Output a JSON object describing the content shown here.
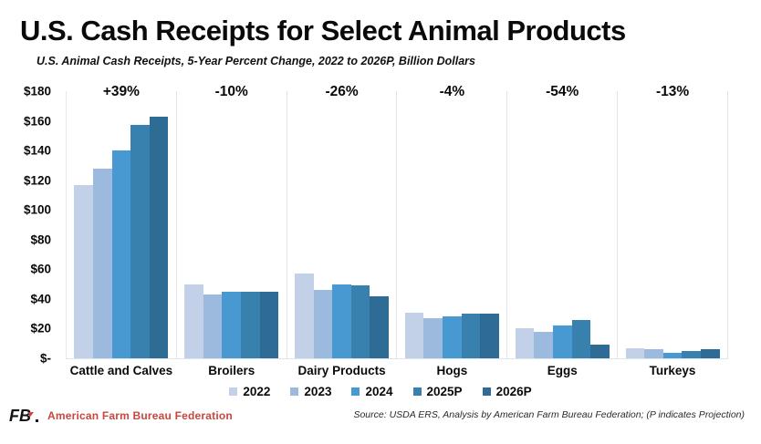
{
  "title": "U.S. Cash Receipts for Select Animal Products",
  "subtitle": "U.S. Animal Cash Receipts, 5-Year Percent Change, 2022 to 2026P, Billion Dollars",
  "chart_data": {
    "type": "bar",
    "series_names": [
      "2022",
      "2023",
      "2024",
      "2025P",
      "2026P"
    ],
    "series_colors": [
      "#c2d1e8",
      "#9cbade",
      "#4899d1",
      "#3880ad",
      "#2e6b95"
    ],
    "categories": [
      {
        "label": "Cattle and Calves",
        "pct_change": "+39%",
        "values": [
          117,
          128,
          140,
          157,
          163
        ]
      },
      {
        "label": "Broilers",
        "pct_change": "-10%",
        "values": [
          50,
          43,
          45,
          45,
          45
        ]
      },
      {
        "label": "Dairy Products",
        "pct_change": "-26%",
        "values": [
          57,
          46,
          50,
          49,
          42
        ]
      },
      {
        "label": "Hogs",
        "pct_change": "-4%",
        "values": [
          31,
          27,
          28,
          30,
          30
        ]
      },
      {
        "label": "Eggs",
        "pct_change": "-54%",
        "values": [
          20,
          18,
          22,
          26,
          9
        ]
      },
      {
        "label": "Turkeys",
        "pct_change": "-13%",
        "values": [
          7,
          6,
          4,
          5,
          6
        ]
      }
    ],
    "y_ticks": [
      "$180",
      "$160",
      "$140",
      "$120",
      "$100",
      "$80",
      "$60",
      "$40",
      "$20",
      "$-"
    ],
    "y_tick_values": [
      180,
      160,
      140,
      120,
      100,
      80,
      60,
      40,
      20,
      0
    ],
    "ylim": [
      0,
      180
    ],
    "grid": false,
    "legend_position": "bottom",
    "xlabel": "",
    "ylabel": ""
  },
  "footer": {
    "logo": "FB.",
    "org": "American Farm Bureau Federation",
    "source": "Source: USDA ERS, Analysis by American Farm Bureau Federation; (P indicates Projection)"
  }
}
